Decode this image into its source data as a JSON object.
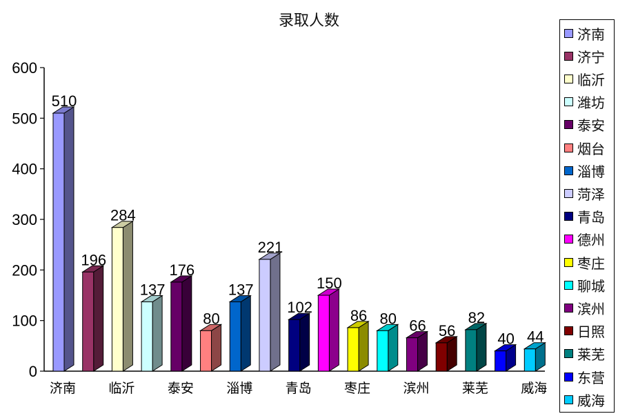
{
  "chart_data": {
    "type": "bar",
    "title": "录取人数",
    "categories": [
      "济南",
      "济宁",
      "临沂",
      "潍坊",
      "泰安",
      "烟台",
      "淄博",
      "菏泽",
      "青岛",
      "德州",
      "枣庄",
      "聊城",
      "滨州",
      "日照",
      "莱芜",
      "东营",
      "威海"
    ],
    "x_tick_labels": [
      "济南",
      "临沂",
      "泰安",
      "淄博",
      "青岛",
      "枣庄",
      "滨州",
      "莱芜",
      "威海"
    ],
    "values": [
      510,
      196,
      284,
      137,
      176,
      80,
      137,
      221,
      102,
      150,
      86,
      80,
      66,
      56,
      82,
      40,
      44
    ],
    "colors": [
      "#9999ff",
      "#993366",
      "#ffffcc",
      "#ccffff",
      "#660066",
      "#ff8080",
      "#0066cc",
      "#ccccff",
      "#000080",
      "#ff00ff",
      "#ffff00",
      "#00ffff",
      "#800080",
      "#800000",
      "#008080",
      "#0000ff",
      "#00ccff"
    ],
    "y_ticks": [
      0,
      100,
      200,
      300,
      400,
      500,
      600
    ],
    "ylim": [
      0,
      600
    ],
    "legend_position": "right",
    "grid": false,
    "style": "3d-column"
  }
}
